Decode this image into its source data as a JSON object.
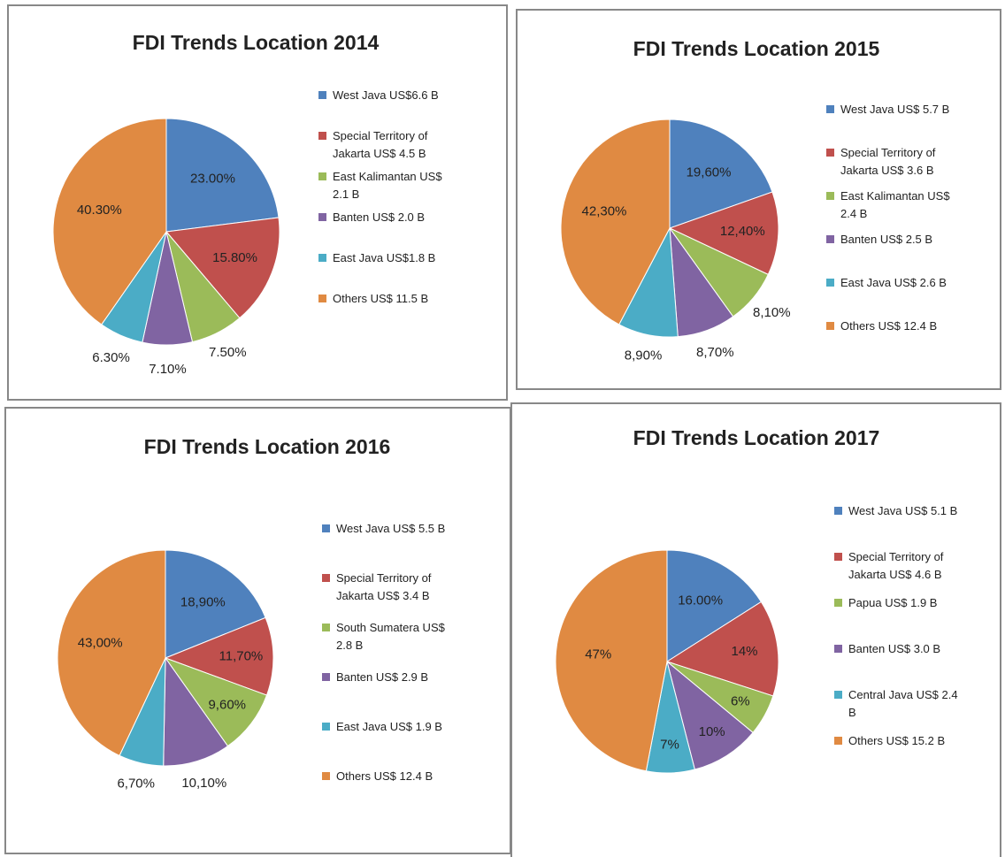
{
  "chart_data": [
    {
      "type": "pie",
      "title": "FDI Trends Location 2014",
      "categories": [
        "West Java US$6.6 B",
        "Special Territory of Jakarta US$ 4.5 B",
        "East Kalimantan US$ 2.1 B",
        "Banten US$ 2.0 B",
        "East Java US$1.8 B",
        "Others US$ 11.5 B"
      ],
      "values": [
        23,
        15.8,
        7.5,
        7.1,
        6.3,
        40.3
      ],
      "value_labels": [
        "23.00%",
        "15.80%",
        "7.50%",
        "7.10%",
        "6.30%",
        "40.30%"
      ],
      "colors": [
        "#4f81bd",
        "#c0504d",
        "#9bbb59",
        "#8064a2",
        "#4bacc6",
        "#e08a42"
      ]
    },
    {
      "type": "pie",
      "title": "FDI Trends Location 2015",
      "categories": [
        "West Java US$ 5.7 B",
        "Special Territory of Jakarta US$ 3.6 B",
        "East Kalimantan US$ 2.4 B",
        "Banten US$ 2.5 B",
        "East Java US$ 2.6 B",
        "Others US$ 12.4 B"
      ],
      "values": [
        19.6,
        12.4,
        8.1,
        8.7,
        8.9,
        42.3
      ],
      "value_labels": [
        "19,60%",
        "12,40%",
        "8,10%",
        "8,70%",
        "8,90%",
        "42,30%"
      ],
      "colors": [
        "#4f81bd",
        "#c0504d",
        "#9bbb59",
        "#8064a2",
        "#4bacc6",
        "#e08a42"
      ]
    },
    {
      "type": "pie",
      "title": "FDI Trends Location 2016",
      "categories": [
        "West Java US$ 5.5 B",
        "Special Territory of Jakarta US$ 3.4 B",
        "South Sumatera US$ 2.8 B",
        "Banten US$ 2.9 B",
        "East Java US$ 1.9 B",
        "Others US$ 12.4 B"
      ],
      "values": [
        18.9,
        11.7,
        9.6,
        10.1,
        6.7,
        43
      ],
      "value_labels": [
        "18,90%",
        "11,70%",
        "9,60%",
        "10,10%",
        "6,70%",
        "43,00%"
      ],
      "colors": [
        "#4f81bd",
        "#c0504d",
        "#9bbb59",
        "#8064a2",
        "#4bacc6",
        "#e08a42"
      ]
    },
    {
      "type": "pie",
      "title": "FDI Trends Location 2017",
      "categories": [
        "West Java US$ 5.1 B",
        "Special Territory of Jakarta US$ 4.6 B",
        "Papua US$ 1.9 B",
        "Banten US$ 3.0 B",
        "Central Java US$ 2.4 B",
        "Others US$ 15.2 B"
      ],
      "values": [
        16,
        14,
        6,
        10,
        7,
        47
      ],
      "value_labels": [
        "16.00%",
        "14%",
        "6%",
        "10%",
        "7%",
        "47%"
      ],
      "colors": [
        "#4f81bd",
        "#c0504d",
        "#9bbb59",
        "#8064a2",
        "#4bacc6",
        "#e08a42"
      ]
    }
  ]
}
